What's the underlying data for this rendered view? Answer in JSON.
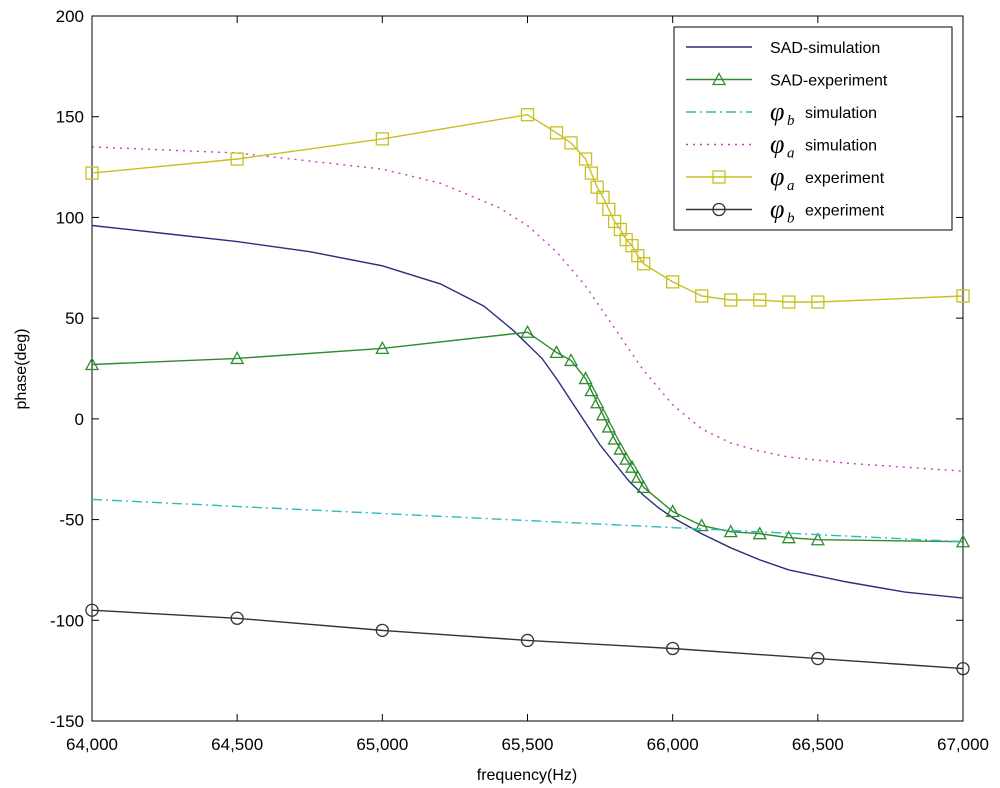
{
  "chart_data": {
    "type": "line",
    "xlabel": "frequency(Hz)",
    "ylabel": "phase(deg)",
    "xlim": [
      64000,
      67000
    ],
    "ylim": [
      -150,
      200
    ],
    "xticks": [
      64000,
      64500,
      65000,
      65500,
      66000,
      66500,
      67000
    ],
    "xtick_labels": [
      "64,000",
      "64,500",
      "65,000",
      "65,500",
      "66,000",
      "66,500",
      "67,000"
    ],
    "yticks": [
      -150,
      -100,
      -50,
      0,
      50,
      100,
      150,
      200
    ],
    "ytick_labels": [
      "-150",
      "-100",
      "-50",
      "0",
      "50",
      "100",
      "150",
      "200"
    ],
    "grid": false,
    "legend_position": "top-right",
    "series": [
      {
        "name": "SAD-simulation",
        "legend": {
          "symbol": "",
          "sub": "",
          "text": "SAD-simulation"
        },
        "color": "#2b2e7a",
        "dash": "",
        "marker": "none",
        "x": [
          64000,
          64250,
          64500,
          64750,
          65000,
          65200,
          65350,
          65450,
          65550,
          65600,
          65650,
          65700,
          65750,
          65800,
          65850,
          65900,
          65950,
          66000,
          66100,
          66200,
          66300,
          66400,
          66600,
          66800,
          67000
        ],
        "y": [
          96,
          92,
          88,
          83,
          76,
          67,
          56,
          44,
          30,
          20,
          9,
          -2,
          -13,
          -22,
          -31,
          -38,
          -44,
          -49,
          -57,
          -64,
          -70,
          -75,
          -81,
          -86,
          -89
        ]
      },
      {
        "name": "SAD-experiment",
        "legend": {
          "symbol": "",
          "sub": "",
          "text": "SAD-experiment"
        },
        "color": "#2e8b2e",
        "dash": "",
        "marker": "triangle",
        "x": [
          64000,
          64500,
          65000,
          65500,
          65600,
          65650,
          65700,
          65720,
          65740,
          65760,
          65780,
          65800,
          65820,
          65840,
          65860,
          65880,
          65900,
          66000,
          66100,
          66200,
          66300,
          66400,
          66500,
          67000
        ],
        "y": [
          27,
          30,
          35,
          43,
          33,
          29,
          20,
          14,
          8,
          2,
          -4,
          -10,
          -15,
          -20,
          -24,
          -29,
          -34,
          -46,
          -53,
          -56,
          -57,
          -59,
          -60,
          -61
        ]
      },
      {
        "name": "φb simulation",
        "legend": {
          "symbol": "φ",
          "sub": "b",
          "text": "simulation"
        },
        "color": "#2bbcbc",
        "dash": "10 4 2 4",
        "marker": "none",
        "x": [
          64000,
          67000
        ],
        "y": [
          -40,
          -61
        ]
      },
      {
        "name": "φa simulation",
        "legend": {
          "symbol": "φ",
          "sub": "a",
          "text": "simulation"
        },
        "color": "#c040c0",
        "dash": "2 5",
        "marker": "none",
        "x": [
          64000,
          64500,
          65000,
          65200,
          65400,
          65500,
          65600,
          65700,
          65800,
          65900,
          66000,
          66100,
          66200,
          66300,
          66400,
          66600,
          66800,
          67000
        ],
        "y": [
          135,
          132,
          124,
          117,
          105,
          96,
          83,
          66,
          45,
          24,
          7,
          -5,
          -12,
          -16,
          -19,
          -22,
          -24,
          -26
        ]
      },
      {
        "name": "φa experiment",
        "legend": {
          "symbol": "φ",
          "sub": "a",
          "text": "experiment"
        },
        "color": "#c8c020",
        "dash": "",
        "marker": "square",
        "x": [
          64000,
          64500,
          65000,
          65500,
          65600,
          65650,
          65700,
          65720,
          65740,
          65760,
          65780,
          65800,
          65820,
          65840,
          65860,
          65880,
          65900,
          66000,
          66100,
          66200,
          66300,
          66400,
          66500,
          67000
        ],
        "y": [
          122,
          129,
          139,
          151,
          142,
          137,
          129,
          122,
          115,
          110,
          104,
          98,
          94,
          89,
          86,
          81,
          77,
          68,
          61,
          59,
          59,
          58,
          58,
          61
        ]
      },
      {
        "name": "φb experiment",
        "legend": {
          "symbol": "φ",
          "sub": "b",
          "text": "experiment"
        },
        "color": "#333333",
        "dash": "",
        "marker": "circle",
        "x": [
          64000,
          64500,
          65000,
          65500,
          66000,
          66500,
          67000
        ],
        "y": [
          -95,
          -99,
          -105,
          -110,
          -114,
          -119,
          -124
        ]
      }
    ]
  }
}
